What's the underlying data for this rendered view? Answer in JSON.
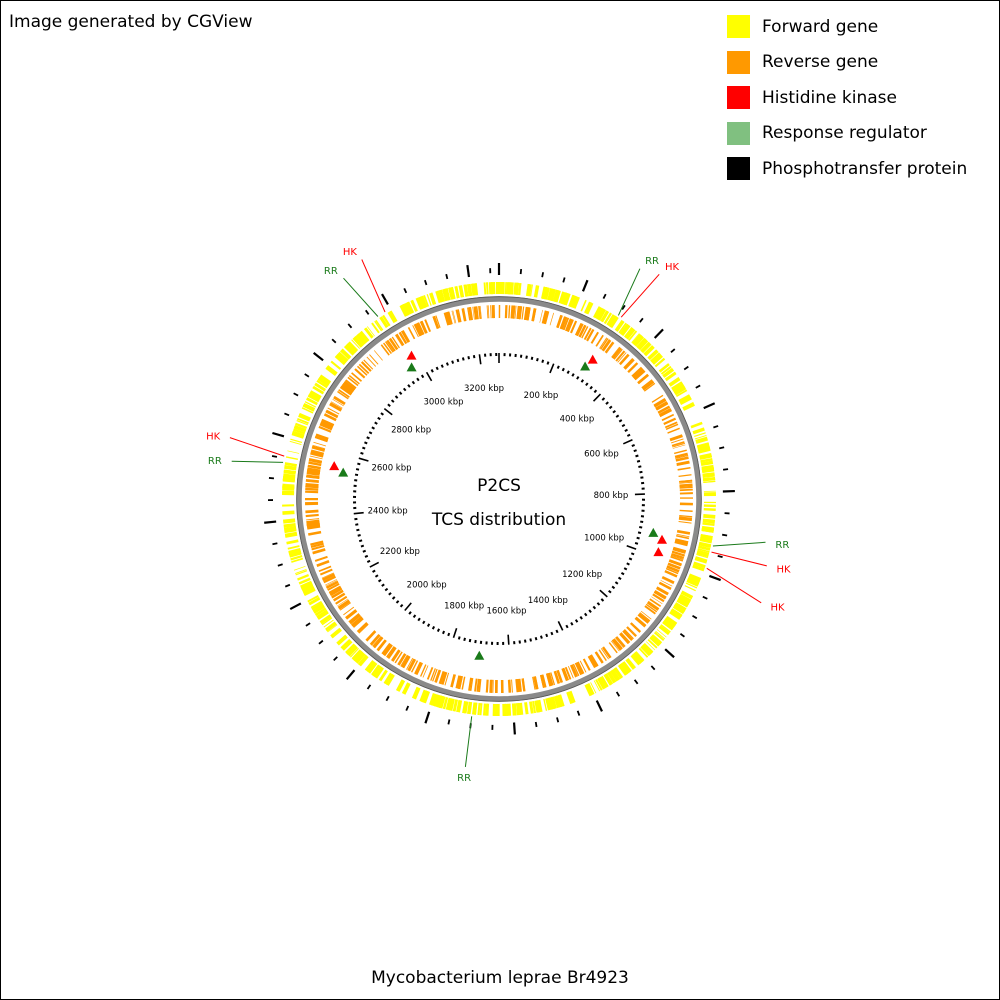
{
  "header": {
    "credit": "Image generated by CGView"
  },
  "legend": {
    "items": [
      {
        "label": "Forward gene",
        "color": "#ffff00"
      },
      {
        "label": "Reverse gene",
        "color": "#ff9900"
      },
      {
        "label": "Histidine kinase",
        "color": "#ff0000"
      },
      {
        "label": "Response regulator",
        "color": "#80c080"
      },
      {
        "label": "Phosphotransfer protein",
        "color": "#000000"
      }
    ]
  },
  "map": {
    "title": "P2CS",
    "subtitle": "TCS distribution",
    "organism": "Mycobacterium leprae Br4923",
    "genome_length_kbp": 3270,
    "scale_labels": [
      {
        "kbp": 200,
        "label": "200 kbp"
      },
      {
        "kbp": 400,
        "label": "400 kbp"
      },
      {
        "kbp": 600,
        "label": "600 kbp"
      },
      {
        "kbp": 800,
        "label": "800 kbp"
      },
      {
        "kbp": 1000,
        "label": "1000 kbp"
      },
      {
        "kbp": 1200,
        "label": "1200 kbp"
      },
      {
        "kbp": 1400,
        "label": "1400 kbp"
      },
      {
        "kbp": 1600,
        "label": "1600 kbp"
      },
      {
        "kbp": 1800,
        "label": "1800 kbp"
      },
      {
        "kbp": 2000,
        "label": "2000 kbp"
      },
      {
        "kbp": 2200,
        "label": "2200 kbp"
      },
      {
        "kbp": 2400,
        "label": "2400 kbp"
      },
      {
        "kbp": 2600,
        "label": "2600 kbp"
      },
      {
        "kbp": 2800,
        "label": "2800 kbp"
      },
      {
        "kbp": 3000,
        "label": "3000 kbp"
      },
      {
        "kbp": 3200,
        "label": "3200 kbp"
      }
    ],
    "tcs_features": [
      {
        "type": "RR",
        "kbp": 300,
        "label": "RR",
        "color": "#1a7a1a"
      },
      {
        "type": "HK",
        "kbp": 308,
        "label": "HK",
        "color": "#ff0000"
      },
      {
        "type": "RR",
        "kbp": 930,
        "label": "RR",
        "color": "#1a7a1a"
      },
      {
        "type": "HK",
        "kbp": 945,
        "label": "HK",
        "color": "#ff0000"
      },
      {
        "type": "HK",
        "kbp": 985,
        "label": "HK",
        "color": "#ff0000"
      },
      {
        "type": "RR",
        "kbp": 1700,
        "label": "RR",
        "color": "#1a7a1a"
      },
      {
        "type": "RR",
        "kbp": 2540,
        "label": "RR",
        "color": "#1a7a1a"
      },
      {
        "type": "HK",
        "kbp": 2555,
        "label": "HK",
        "color": "#ff0000"
      },
      {
        "type": "RR",
        "kbp": 2965,
        "label": "RR",
        "color": "#1a7a1a"
      },
      {
        "type": "HK",
        "kbp": 2985,
        "label": "HK",
        "color": "#ff0000"
      }
    ]
  }
}
